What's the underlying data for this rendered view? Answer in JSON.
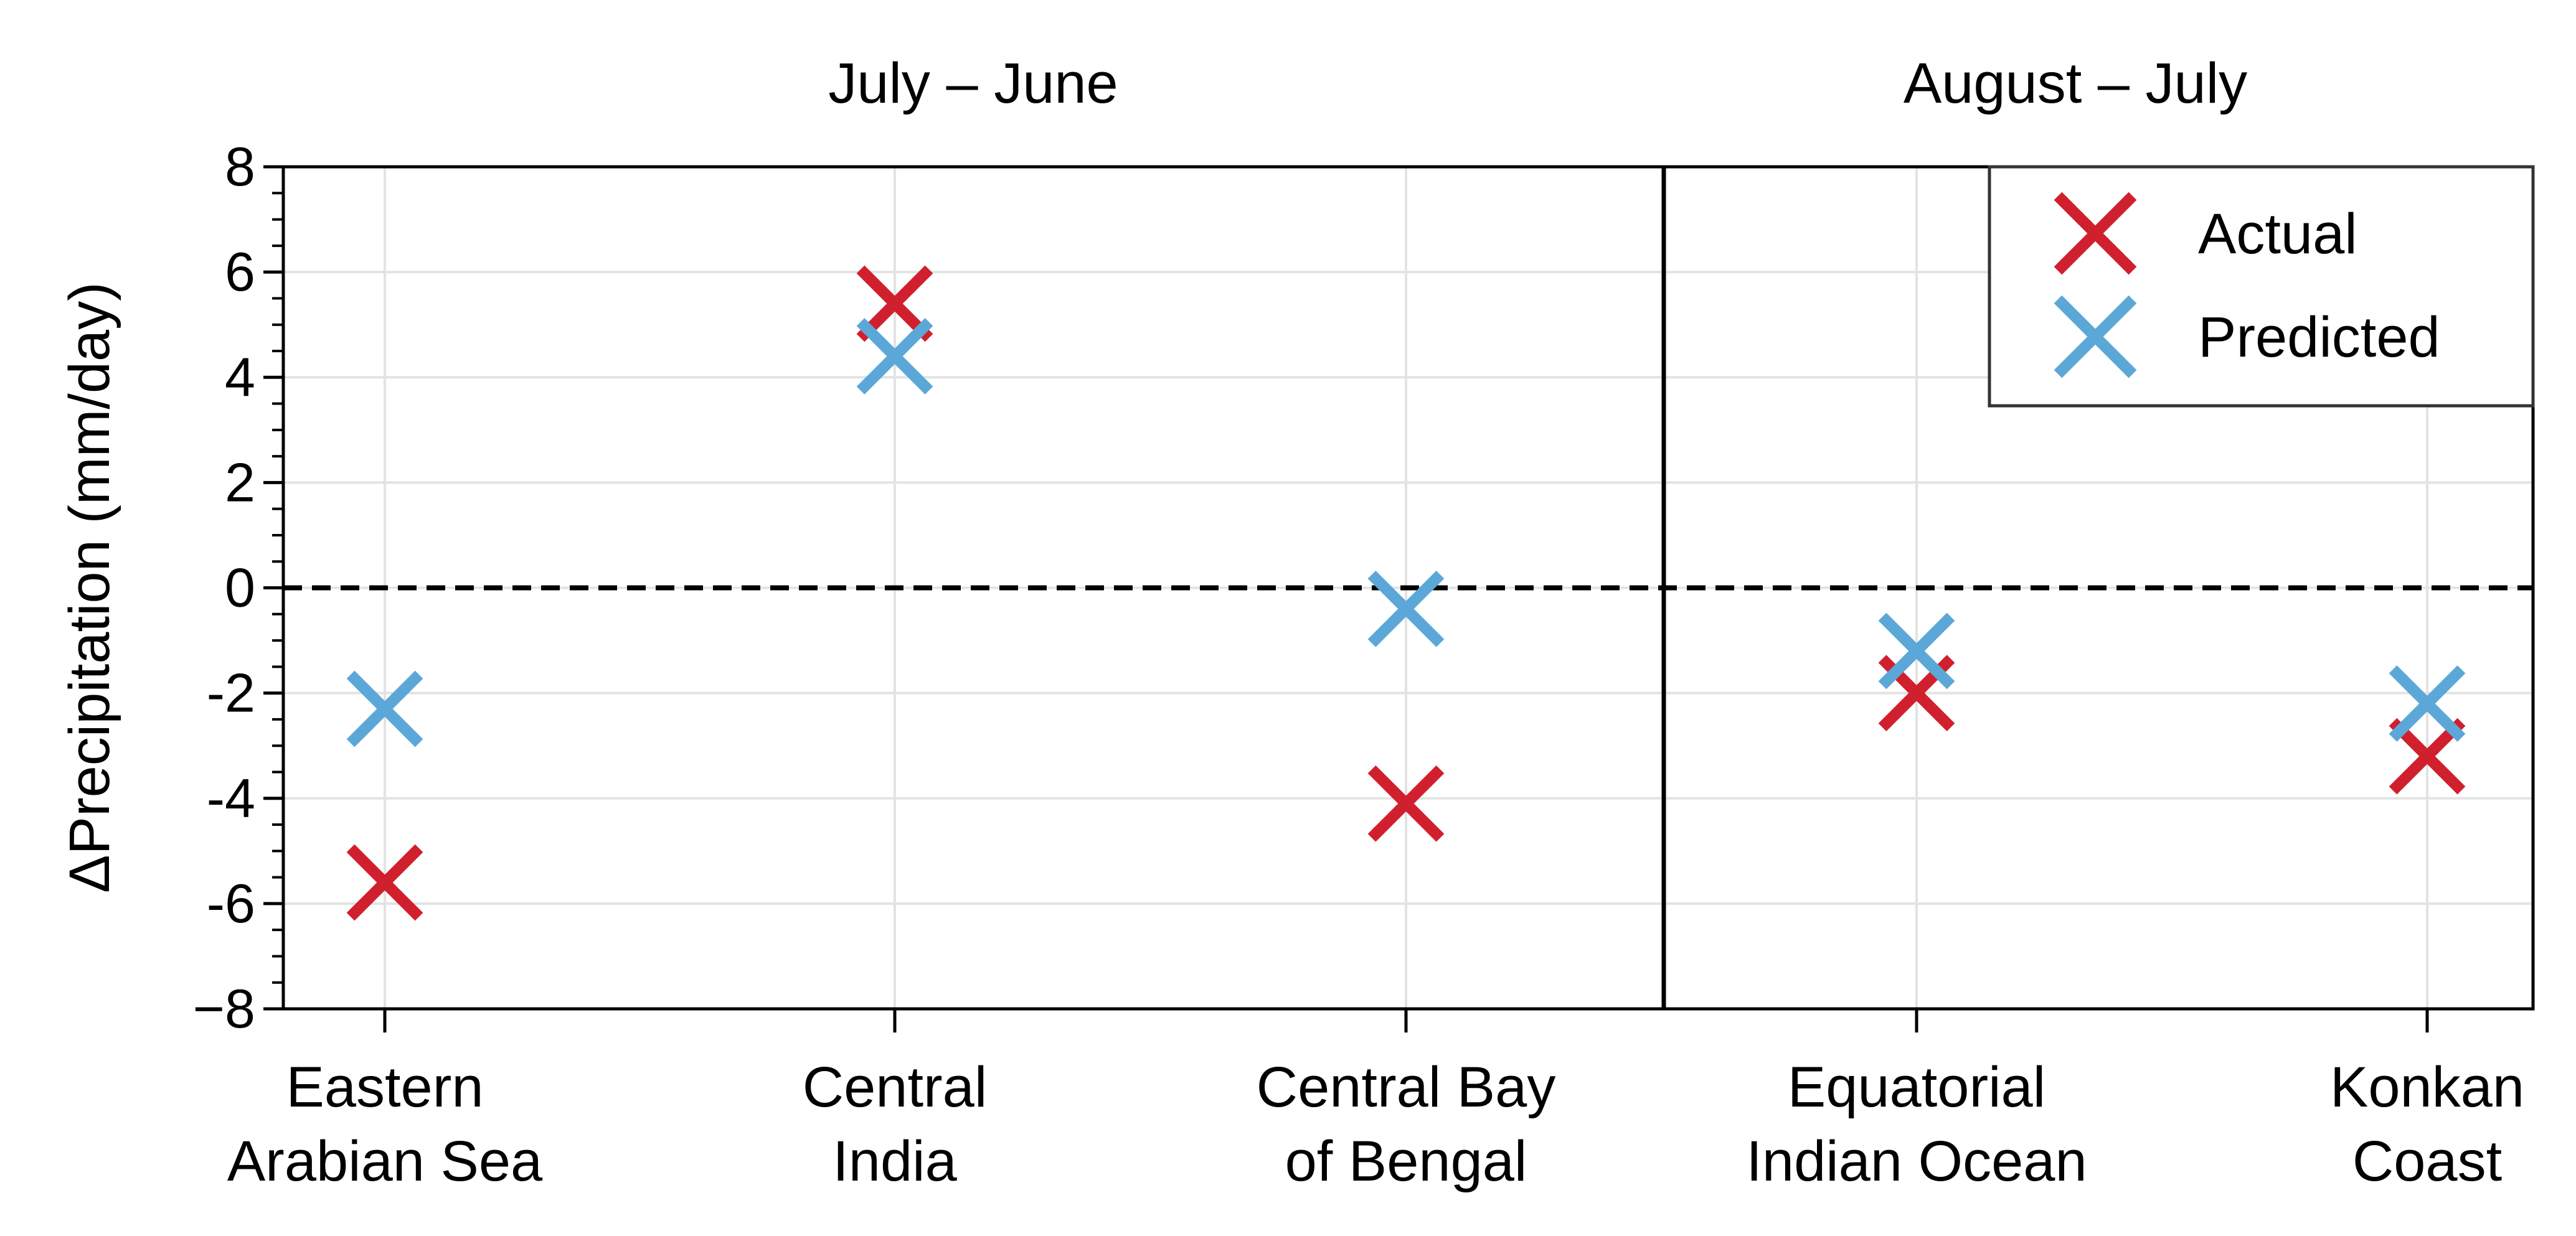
{
  "chart_data": {
    "type": "scatter",
    "ylabel": "ΔPrecipitation (mm/day)",
    "ylim": [
      -8,
      8
    ],
    "yticks": [
      8,
      6,
      4,
      2,
      0,
      -2,
      -4,
      -6,
      -8
    ],
    "ytick_labels": [
      "8",
      "6",
      "4",
      "2",
      "0",
      "-2",
      "-4",
      "-6",
      "−8"
    ],
    "grid": true,
    "reference_line": 0,
    "legend_position": "top-right",
    "colors": {
      "Actual": "#d0202e",
      "Predicted": "#5ba8d8"
    },
    "panel_titles": [
      "July – June",
      "August – July"
    ],
    "panels": [
      {
        "title": "July – June",
        "categories": [
          [
            "Eastern",
            "Arabian Sea"
          ],
          [
            "Central",
            "India"
          ],
          [
            "Central Bay",
            "of Bengal"
          ]
        ]
      },
      {
        "title": "August – July",
        "categories": [
          [
            "Equatorial",
            "Indian Ocean"
          ],
          [
            "Konkan",
            "Coast"
          ]
        ]
      }
    ],
    "categories": [
      "Eastern Arabian Sea",
      "Central India",
      "Central Bay of Bengal",
      "Equatorial Indian Ocean",
      "Konkan Coast"
    ],
    "series": [
      {
        "name": "Actual",
        "values": [
          -5.6,
          5.4,
          -4.1,
          -2.0,
          -3.2
        ]
      },
      {
        "name": "Predicted",
        "values": [
          -2.3,
          4.4,
          -0.4,
          -1.2,
          -2.2
        ]
      }
    ]
  }
}
